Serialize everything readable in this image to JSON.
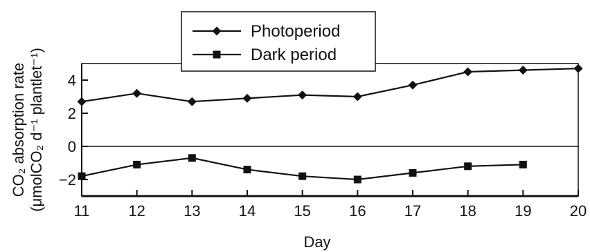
{
  "chart_data": {
    "type": "line",
    "xlabel": "Day",
    "ylabel_line1": "CO₂ absorption rate",
    "ylabel_line2": "(μmolCO₂ d⁻¹ plantlet⁻¹)",
    "xlim": [
      11,
      20
    ],
    "ylim": [
      -3,
      5
    ],
    "x_ticks": [
      "11",
      "12",
      "13",
      "14",
      "15",
      "16",
      "17",
      "18",
      "19",
      "20"
    ],
    "y_ticks": [
      "-2",
      "0",
      "2",
      "4"
    ],
    "zero_line": true,
    "grid": false,
    "legend_position": "top-center",
    "series": [
      {
        "name": "Photoperiod",
        "marker": "diamond",
        "x": [
          11,
          12,
          13,
          14,
          15,
          16,
          17,
          18,
          19,
          20
        ],
        "values": [
          2.7,
          3.2,
          2.7,
          2.9,
          3.1,
          3.0,
          3.7,
          4.5,
          4.6,
          4.7
        ]
      },
      {
        "name": "Dark period",
        "marker": "square",
        "x": [
          11,
          12,
          13,
          14,
          15,
          16,
          17,
          18,
          19
        ],
        "values": [
          -1.8,
          -1.1,
          -0.7,
          -1.4,
          -1.8,
          -2.0,
          -1.6,
          -1.2,
          -1.1
        ]
      }
    ]
  }
}
